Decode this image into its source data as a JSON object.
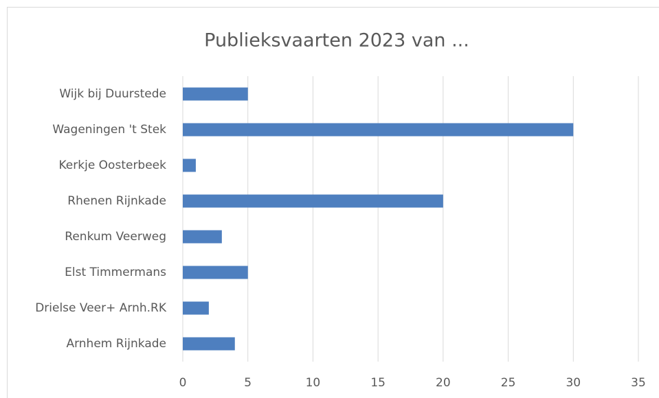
{
  "chart_data": {
    "type": "bar",
    "orientation": "horizontal",
    "title": "Publieksvaarten 2023 van ...",
    "categories": [
      "Wijk bij Duurstede",
      "Wageningen 't Stek",
      "Kerkje Oosterbeek",
      "Rhenen Rijnkade",
      "Renkum Veerweg",
      "Elst Timmermans",
      "Drielse Veer+ Arnh.RK",
      "Arnhem Rijnkade"
    ],
    "values": [
      5,
      30,
      1,
      20,
      3,
      5,
      2,
      4
    ],
    "color": "#4e7fbf",
    "xlim": [
      0,
      35
    ],
    "xticks": [
      0,
      5,
      10,
      15,
      20,
      25,
      30,
      35
    ],
    "grid": true
  }
}
